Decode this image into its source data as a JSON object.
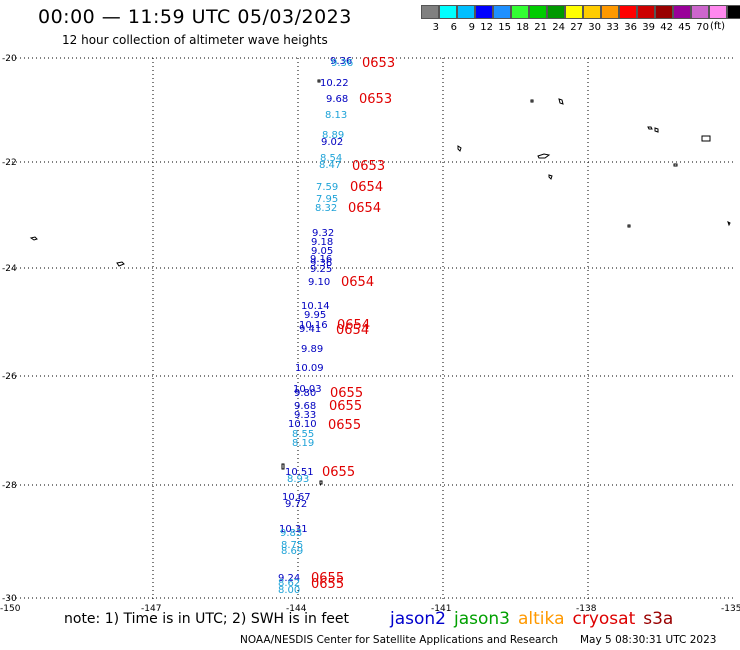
{
  "header": {
    "title": "00:00 — 11:59 UTC 05/03/2023",
    "subtitle": "12 hour collection of altimeter wave heights"
  },
  "legend": {
    "unit": "(ft)",
    "bins": [
      {
        "label": "",
        "color": "#808080"
      },
      {
        "label": "3",
        "color": "#00ffff"
      },
      {
        "label": "6",
        "color": "#00bfff"
      },
      {
        "label": "9",
        "color": "#0000ff"
      },
      {
        "label": "12",
        "color": "#1e90ff"
      },
      {
        "label": "15",
        "color": "#33ff33"
      },
      {
        "label": "18",
        "color": "#00cc00"
      },
      {
        "label": "21",
        "color": "#009900"
      },
      {
        "label": "24",
        "color": "#ffff00"
      },
      {
        "label": "27",
        "color": "#ffcc00"
      },
      {
        "label": "30",
        "color": "#ff9900"
      },
      {
        "label": "33",
        "color": "#ff0000"
      },
      {
        "label": "36",
        "color": "#cc0000"
      },
      {
        "label": "39",
        "color": "#990000"
      },
      {
        "label": "42",
        "color": "#990099"
      },
      {
        "label": "45",
        "color": "#cc66cc"
      },
      {
        "label": "70",
        "color": "#ff88ee"
      },
      {
        "label": "",
        "color": "#000000"
      }
    ]
  },
  "map": {
    "lon_ticks": [
      "-150",
      "-147",
      "-144",
      "-141",
      "-138",
      "-135"
    ],
    "lat_ticks": [
      "-20",
      "-22",
      "-24",
      "-26",
      "-28",
      "-30"
    ],
    "grid": true,
    "colors": {
      "light_blue": "#1fa3d8",
      "dark_blue": "#0000c0",
      "time_red": "#e00000"
    },
    "heights": [
      {
        "v": "9.36",
        "c": "dark_blue"
      },
      {
        "v": "9.36",
        "c": "light_blue"
      },
      {
        "v": "10.22",
        "c": "dark_blue"
      },
      {
        "v": "9.68",
        "c": "dark_blue"
      },
      {
        "v": "8.13",
        "c": "light_blue"
      },
      {
        "v": "8.89",
        "c": "light_blue"
      },
      {
        "v": "9.02",
        "c": "dark_blue"
      },
      {
        "v": "8.54",
        "c": "light_blue"
      },
      {
        "v": "8.47",
        "c": "light_blue"
      },
      {
        "v": "7.59",
        "c": "light_blue"
      },
      {
        "v": "7.95",
        "c": "light_blue"
      },
      {
        "v": "8.32",
        "c": "light_blue"
      },
      {
        "v": "9.32",
        "c": "dark_blue"
      },
      {
        "v": "9.18",
        "c": "dark_blue"
      },
      {
        "v": "9.05",
        "c": "dark_blue"
      },
      {
        "v": "9.16",
        "c": "dark_blue"
      },
      {
        "v": "9.36",
        "c": "dark_blue"
      },
      {
        "v": "9.25",
        "c": "dark_blue"
      },
      {
        "v": "9.10",
        "c": "dark_blue"
      },
      {
        "v": "10.14",
        "c": "dark_blue"
      },
      {
        "v": "9.95",
        "c": "dark_blue"
      },
      {
        "v": "10.16",
        "c": "dark_blue"
      },
      {
        "v": "9.41",
        "c": "dark_blue"
      },
      {
        "v": "9.89",
        "c": "dark_blue"
      },
      {
        "v": "10.09",
        "c": "dark_blue"
      },
      {
        "v": "10.03",
        "c": "dark_blue"
      },
      {
        "v": "9.80",
        "c": "dark_blue"
      },
      {
        "v": "9.68",
        "c": "dark_blue"
      },
      {
        "v": "9.33",
        "c": "dark_blue"
      },
      {
        "v": "10.10",
        "c": "dark_blue"
      },
      {
        "v": "8.55",
        "c": "light_blue"
      },
      {
        "v": "8.19",
        "c": "light_blue"
      },
      {
        "v": "10.51",
        "c": "dark_blue"
      },
      {
        "v": "8.93",
        "c": "light_blue"
      },
      {
        "v": "10.67",
        "c": "dark_blue"
      },
      {
        "v": "9.72",
        "c": "dark_blue"
      },
      {
        "v": "10.31",
        "c": "dark_blue"
      },
      {
        "v": "9.83",
        "c": "light_blue"
      },
      {
        "v": "8.75",
        "c": "light_blue"
      },
      {
        "v": "8.69",
        "c": "light_blue"
      },
      {
        "v": "9.24",
        "c": "dark_blue"
      },
      {
        "v": "8.62",
        "c": "light_blue"
      },
      {
        "v": "8.00",
        "c": "light_blue"
      }
    ],
    "times": [
      "0653",
      "0653",
      "0653",
      "0654",
      "0654",
      "0654",
      "0654",
      "0654",
      "0655",
      "0655",
      "0655",
      "0655",
      "0655",
      "0655"
    ]
  },
  "footer": {
    "note": "note: 1) Time is in UTC; 2) SWH is in feet",
    "missions": [
      {
        "name": "jason2",
        "color": "#0000cc"
      },
      {
        "name": "jason3",
        "color": "#00a000"
      },
      {
        "name": "altika",
        "color": "#ff9900"
      },
      {
        "name": "cryosat",
        "color": "#dd0000"
      },
      {
        "name": "s3a",
        "color": "#990000"
      }
    ],
    "credit": "NOAA/NESDIS Center for Satellite Applications and Research",
    "timestamp": "May  5 08:30:31 UTC 2023"
  }
}
